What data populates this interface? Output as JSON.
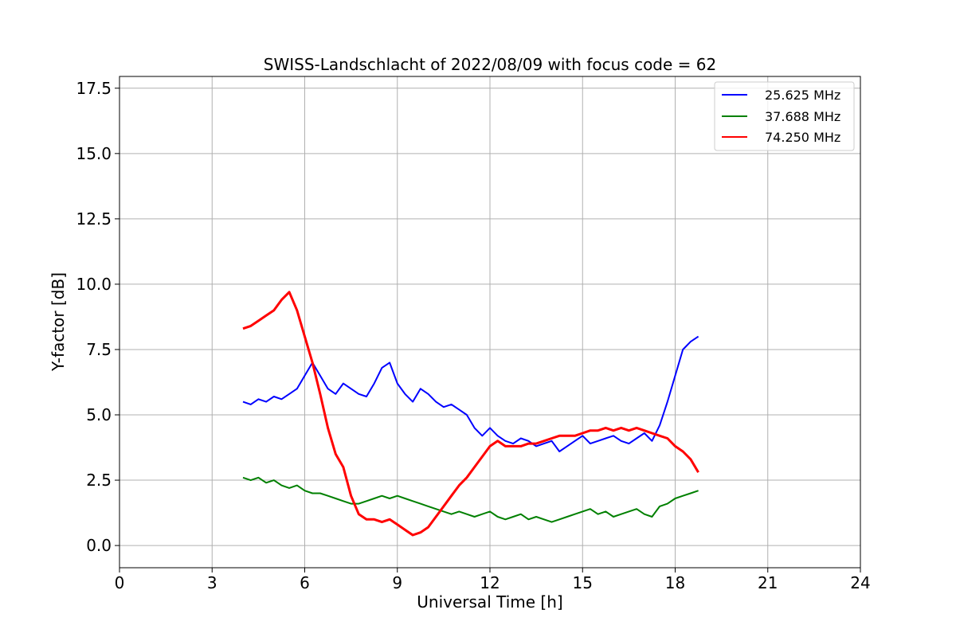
{
  "chart_data": {
    "type": "line",
    "title": "SWISS-Landschlacht of 2022/08/09 with focus code = 62",
    "xlabel": "Universal Time [h]",
    "ylabel": "Y-factor [dB]",
    "xlim": [
      0,
      24
    ],
    "ylim": [
      -0.85,
      17.95
    ],
    "x_ticks": [
      0,
      3,
      6,
      9,
      12,
      15,
      18,
      21,
      24
    ],
    "x_tick_labels": [
      "0",
      "3",
      "6",
      "9",
      "12",
      "15",
      "18",
      "21",
      "24"
    ],
    "y_ticks": [
      0.0,
      2.5,
      5.0,
      7.5,
      10.0,
      12.5,
      15.0,
      17.5
    ],
    "y_tick_labels": [
      "0.0",
      "2.5",
      "5.0",
      "7.5",
      "10.0",
      "12.5",
      "15.0",
      "17.5"
    ],
    "grid": true,
    "legend_position": "top-right",
    "series": [
      {
        "name": "25.625 MHz",
        "color": "#0000ff",
        "x": [
          4.0,
          4.25,
          4.5,
          4.75,
          5.0,
          5.25,
          5.5,
          5.75,
          6.0,
          6.25,
          6.5,
          6.75,
          7.0,
          7.25,
          7.5,
          7.75,
          8.0,
          8.25,
          8.5,
          8.75,
          9.0,
          9.25,
          9.5,
          9.75,
          10.0,
          10.25,
          10.5,
          10.75,
          11.0,
          11.25,
          11.5,
          11.75,
          12.0,
          12.25,
          12.5,
          12.75,
          13.0,
          13.25,
          13.5,
          13.75,
          14.0,
          14.25,
          14.5,
          14.75,
          15.0,
          15.25,
          15.5,
          15.75,
          16.0,
          16.25,
          16.5,
          16.75,
          17.0,
          17.25,
          17.5,
          17.75,
          18.0,
          18.25,
          18.5,
          18.75
        ],
        "y": [
          5.5,
          5.4,
          5.6,
          5.5,
          5.7,
          5.6,
          5.8,
          6.0,
          6.5,
          7.0,
          6.5,
          6.0,
          5.8,
          6.2,
          6.0,
          5.8,
          5.7,
          6.2,
          6.8,
          7.0,
          6.2,
          5.8,
          5.5,
          6.0,
          5.8,
          5.5,
          5.3,
          5.4,
          5.2,
          5.0,
          4.5,
          4.2,
          4.5,
          4.2,
          4.0,
          3.9,
          4.1,
          4.0,
          3.8,
          3.9,
          4.0,
          3.6,
          3.8,
          4.0,
          4.2,
          3.9,
          4.0,
          4.1,
          4.2,
          4.0,
          3.9,
          4.1,
          4.3,
          4.0,
          4.6,
          5.5,
          6.5,
          7.5,
          7.8,
          8.0
        ]
      },
      {
        "name": "37.688 MHz",
        "color": "#008000",
        "x": [
          4.0,
          4.25,
          4.5,
          4.75,
          5.0,
          5.25,
          5.5,
          5.75,
          6.0,
          6.25,
          6.5,
          6.75,
          7.0,
          7.25,
          7.5,
          7.75,
          8.0,
          8.25,
          8.5,
          8.75,
          9.0,
          9.25,
          9.5,
          9.75,
          10.0,
          10.25,
          10.5,
          10.75,
          11.0,
          11.25,
          11.5,
          11.75,
          12.0,
          12.25,
          12.5,
          12.75,
          13.0,
          13.25,
          13.5,
          13.75,
          14.0,
          14.25,
          14.5,
          14.75,
          15.0,
          15.25,
          15.5,
          15.75,
          16.0,
          16.25,
          16.5,
          16.75,
          17.0,
          17.25,
          17.5,
          17.75,
          18.0,
          18.25,
          18.5,
          18.75
        ],
        "y": [
          2.6,
          2.5,
          2.6,
          2.4,
          2.5,
          2.3,
          2.2,
          2.3,
          2.1,
          2.0,
          2.0,
          1.9,
          1.8,
          1.7,
          1.6,
          1.6,
          1.7,
          1.8,
          1.9,
          1.8,
          1.9,
          1.8,
          1.7,
          1.6,
          1.5,
          1.4,
          1.3,
          1.2,
          1.3,
          1.2,
          1.1,
          1.2,
          1.3,
          1.1,
          1.0,
          1.1,
          1.2,
          1.0,
          1.1,
          1.0,
          0.9,
          1.0,
          1.1,
          1.2,
          1.3,
          1.4,
          1.2,
          1.3,
          1.1,
          1.2,
          1.3,
          1.4,
          1.2,
          1.1,
          1.5,
          1.6,
          1.8,
          1.9,
          2.0,
          2.1
        ]
      },
      {
        "name": "74.250 MHz",
        "color": "#ff0000",
        "x": [
          4.0,
          4.25,
          4.5,
          4.75,
          5.0,
          5.25,
          5.5,
          5.75,
          6.0,
          6.25,
          6.5,
          6.75,
          7.0,
          7.25,
          7.5,
          7.75,
          8.0,
          8.25,
          8.5,
          8.75,
          9.0,
          9.25,
          9.5,
          9.75,
          10.0,
          10.25,
          10.5,
          10.75,
          11.0,
          11.25,
          11.5,
          11.75,
          12.0,
          12.25,
          12.5,
          12.75,
          13.0,
          13.25,
          13.5,
          13.75,
          14.0,
          14.25,
          14.5,
          14.75,
          15.0,
          15.25,
          15.5,
          15.75,
          16.0,
          16.25,
          16.5,
          16.75,
          17.0,
          17.25,
          17.5,
          17.75,
          18.0,
          18.25,
          18.5,
          18.75
        ],
        "y": [
          8.3,
          8.4,
          8.6,
          8.8,
          9.0,
          9.4,
          9.7,
          9.0,
          8.0,
          7.0,
          5.8,
          4.5,
          3.5,
          3.0,
          1.9,
          1.2,
          1.0,
          1.0,
          0.9,
          1.0,
          0.8,
          0.6,
          0.4,
          0.5,
          0.7,
          1.1,
          1.5,
          1.9,
          2.3,
          2.6,
          3.0,
          3.4,
          3.8,
          4.0,
          3.8,
          3.8,
          3.8,
          3.9,
          3.9,
          4.0,
          4.1,
          4.2,
          4.2,
          4.2,
          4.3,
          4.4,
          4.4,
          4.5,
          4.4,
          4.5,
          4.4,
          4.5,
          4.4,
          4.3,
          4.2,
          4.1,
          3.8,
          3.6,
          3.3,
          2.8
        ]
      }
    ]
  }
}
